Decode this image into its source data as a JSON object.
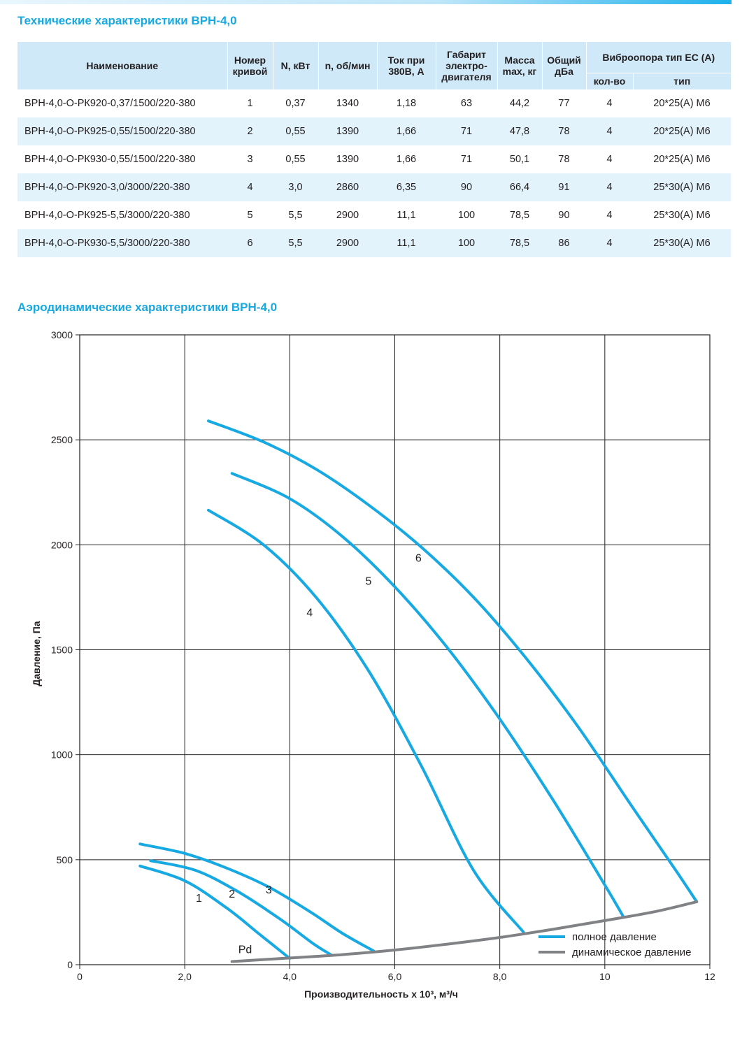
{
  "spec_section": {
    "title": "Технические характеристики ВРН-4,0",
    "headers": {
      "name": "Наименование",
      "curve": "Номер кривой",
      "power": "N, кВт",
      "rpm": "n, об/мин",
      "current": "Ток при 380В, А",
      "motor_size": "Габарит электро-двигателя",
      "mass": "Масса max, кг",
      "noise": "Общий дБа",
      "vibro": "Виброопора тип ЕС (А)",
      "vibro_qty": "кол-во",
      "vibro_type": "тип"
    },
    "rows": [
      {
        "name": "ВРН-4,0-О-РК920-0,37/1500/220-380",
        "curve": "1",
        "power": "0,37",
        "rpm": "1340",
        "current": "1,18",
        "motor_size": "63",
        "mass": "44,2",
        "noise": "77",
        "vibro_qty": "4",
        "vibro_type": "20*25(А) М6"
      },
      {
        "name": "ВРН-4,0-О-РК925-0,55/1500/220-380",
        "curve": "2",
        "power": "0,55",
        "rpm": "1390",
        "current": "1,66",
        "motor_size": "71",
        "mass": "47,8",
        "noise": "78",
        "vibro_qty": "4",
        "vibro_type": "20*25(А) М6"
      },
      {
        "name": "ВРН-4,0-О-РК930-0,55/1500/220-380",
        "curve": "3",
        "power": "0,55",
        "rpm": "1390",
        "current": "1,66",
        "motor_size": "71",
        "mass": "50,1",
        "noise": "78",
        "vibro_qty": "4",
        "vibro_type": "20*25(А) М6"
      },
      {
        "name": "ВРН-4,0-О-РК920-3,0/3000/220-380",
        "curve": "4",
        "power": "3,0",
        "rpm": "2860",
        "current": "6,35",
        "motor_size": "90",
        "mass": "66,4",
        "noise": "91",
        "vibro_qty": "4",
        "vibro_type": "25*30(А) М6"
      },
      {
        "name": "ВРН-4,0-О-РК925-5,5/3000/220-380",
        "curve": "5",
        "power": "5,5",
        "rpm": "2900",
        "current": "11,1",
        "motor_size": "100",
        "mass": "78,5",
        "noise": "90",
        "vibro_qty": "4",
        "vibro_type": "25*30(А) М6"
      },
      {
        "name": "ВРН-4,0-О-РК930-5,5/3000/220-380",
        "curve": "6",
        "power": "5,5",
        "rpm": "2900",
        "current": "11,1",
        "motor_size": "100",
        "mass": "78,5",
        "noise": "86",
        "vibro_qty": "4",
        "vibro_type": "25*30(А) М6"
      }
    ]
  },
  "aero_section": {
    "title": "Аэродинамические характеристики ВРН-4,0"
  },
  "colors": {
    "accent": "#17a9e1",
    "curve": "#17a9e1",
    "dynamic_curve": "#808285",
    "header_bg": "#cfe9f8",
    "row_alt_bg": "#e3f3fc"
  },
  "chart_data": {
    "type": "line",
    "xlabel": "Производительность х 10³, м³/ч",
    "ylabel": "Давление, Па",
    "xlim": [
      0,
      12
    ],
    "ylim": [
      0,
      3000
    ],
    "x_ticks": [
      0,
      2,
      4,
      6,
      8,
      10,
      12
    ],
    "x_tick_labels": [
      "0",
      "2,0",
      "4,0",
      "6,0",
      "8,0",
      "10",
      "12"
    ],
    "y_ticks": [
      0,
      500,
      1000,
      1500,
      2000,
      2500,
      3000
    ],
    "y_tick_labels": [
      "0",
      "500",
      "1000",
      "1500",
      "2000",
      "2500",
      "3000"
    ],
    "grid": true,
    "legend_position": "bottom-right",
    "legend": [
      {
        "label": "полное давление",
        "color": "#17a9e1"
      },
      {
        "label": "динамическое давление",
        "color": "#808285"
      }
    ],
    "series": [
      {
        "label": "1",
        "kind": "total",
        "x": [
          1.15,
          2.0,
          2.8,
          3.4,
          4.0
        ],
        "y": [
          470,
          400,
          270,
          150,
          30
        ],
        "label_at": [
          2.27,
          300
        ]
      },
      {
        "label": "2",
        "kind": "total",
        "x": [
          1.35,
          2.2,
          3.0,
          3.8,
          4.45,
          4.8
        ],
        "y": [
          495,
          450,
          350,
          220,
          100,
          45
        ],
        "label_at": [
          2.9,
          320
        ]
      },
      {
        "label": "3",
        "kind": "total",
        "x": [
          1.15,
          2.0,
          2.8,
          3.6,
          4.4,
          5.0,
          5.6
        ],
        "y": [
          575,
          530,
          460,
          370,
          250,
          150,
          65
        ],
        "label_at": [
          3.6,
          340
        ]
      },
      {
        "label": "4",
        "kind": "total",
        "x": [
          2.45,
          3.5,
          4.5,
          5.5,
          6.5,
          7.5,
          8.45
        ],
        "y": [
          2165,
          2000,
          1750,
          1400,
          950,
          450,
          155
        ],
        "label_at": [
          4.38,
          1660
        ]
      },
      {
        "label": "5",
        "kind": "total",
        "x": [
          2.9,
          4.0,
          5.0,
          6.0,
          7.0,
          8.0,
          9.0,
          10.0,
          10.35
        ],
        "y": [
          2340,
          2220,
          2040,
          1800,
          1510,
          1170,
          790,
          380,
          230
        ],
        "label_at": [
          5.5,
          1810
        ]
      },
      {
        "label": "6",
        "kind": "total",
        "x": [
          2.45,
          3.5,
          4.5,
          5.5,
          6.5,
          7.5,
          8.5,
          9.5,
          10.5,
          11.35,
          11.75
        ],
        "y": [
          2590,
          2490,
          2360,
          2190,
          1990,
          1750,
          1460,
          1130,
          760,
          450,
          300
        ],
        "label_at": [
          6.45,
          1920
        ]
      },
      {
        "label": "Pd",
        "kind": "dynamic",
        "x": [
          2.9,
          4.0,
          5.0,
          6.0,
          7.0,
          8.0,
          9.0,
          10.0,
          11.0,
          11.75
        ],
        "y": [
          15,
          32,
          48,
          70,
          98,
          130,
          168,
          210,
          255,
          300
        ],
        "label_at": [
          3.15,
          55
        ]
      }
    ]
  }
}
